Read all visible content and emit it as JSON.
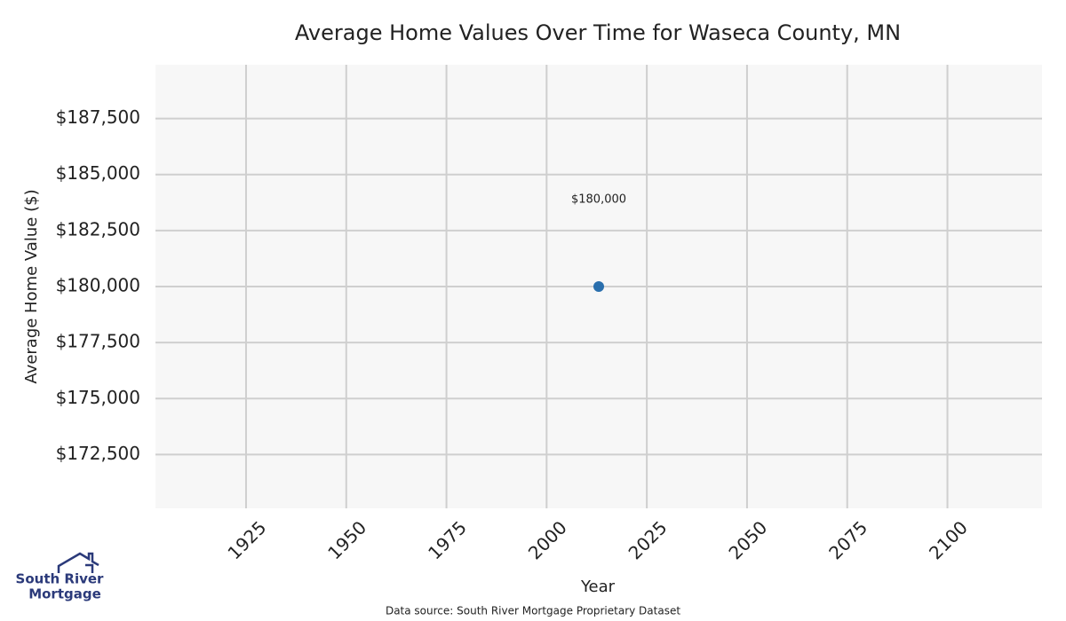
{
  "chart_data": {
    "type": "scatter",
    "title": "Average Home Values Over Time for Waseca County, MN",
    "x_label": "Year",
    "y_label": "Average Home Value ($)",
    "x": [
      2013
    ],
    "values": [
      180000
    ],
    "value_labels": [
      "$180,000"
    ],
    "color": "#2a6fad",
    "xlim": [
      1902.4,
      2123.6
    ],
    "xticks": [
      1925,
      1950,
      1975,
      2000,
      2025,
      2050,
      2075,
      2100
    ],
    "ylim": [
      170100,
      189900
    ],
    "yticks": [
      {
        "value": 172500,
        "label": "$172,500"
      },
      {
        "value": 175000,
        "label": "$175,000"
      },
      {
        "value": 177500,
        "label": "$177,500"
      },
      {
        "value": 180000,
        "label": "$180,000"
      },
      {
        "value": 182500,
        "label": "$182,500"
      },
      {
        "value": 185000,
        "label": "$185,000"
      },
      {
        "value": 187500,
        "label": "$187,500"
      }
    ],
    "grid": true,
    "source": "Data source: South River Mortgage Proprietary Dataset"
  },
  "logo": {
    "line1": "South River",
    "line2": "Mortgage"
  }
}
